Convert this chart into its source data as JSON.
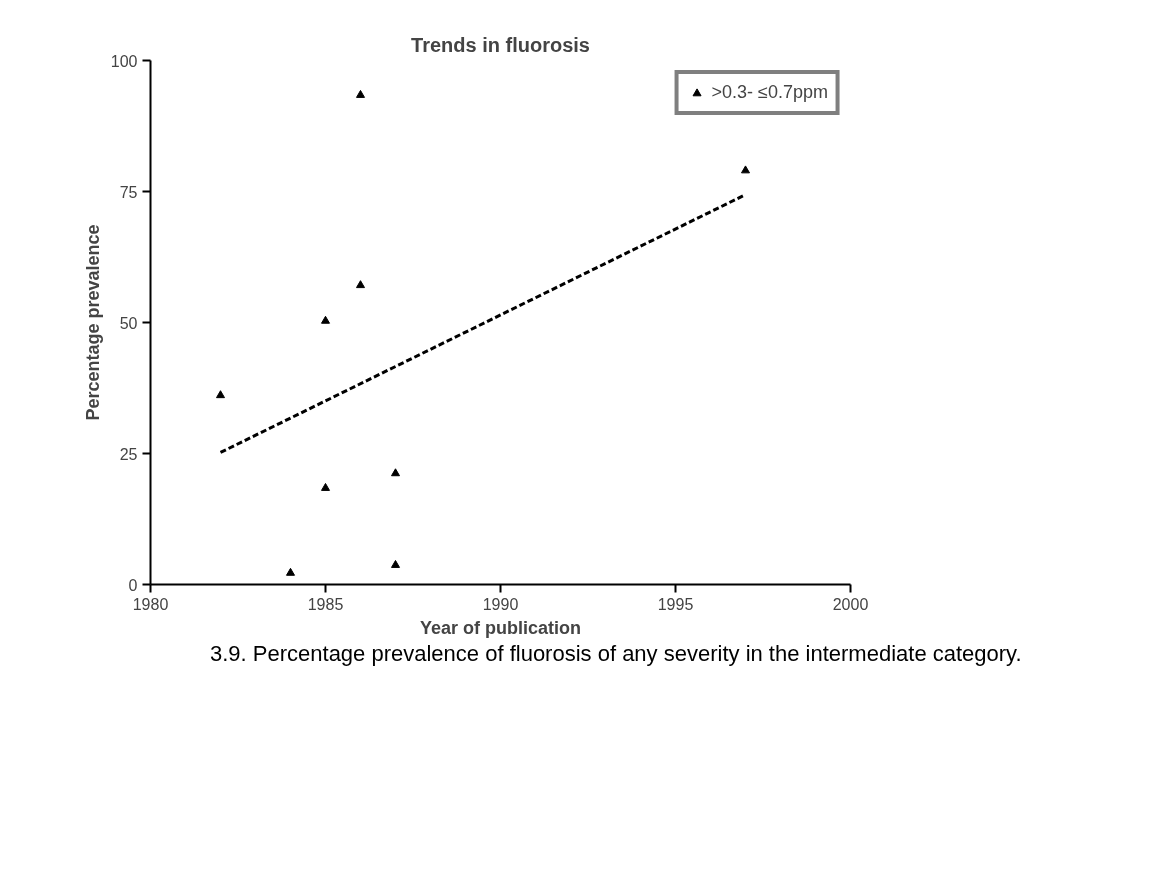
{
  "chart_data": {
    "type": "scatter",
    "title": "Trends in fluorosis",
    "xlabel": "Year of publication",
    "ylabel": "Percentage prevalence",
    "x": [
      1982,
      1984,
      1985,
      1985,
      1986,
      1986,
      1987,
      1987,
      1997
    ],
    "series": [
      {
        "name": ">0.3- ≤0.7ppm",
        "color": "#000000",
        "values": [
          36.1,
          2.2,
          50.3,
          18.4,
          93.4,
          57.1,
          21.2,
          3.7,
          79.0
        ]
      },
      {
        "type": "line",
        "color": "#000000",
        "x": [
          1982,
          1997
        ],
        "values": [
          25.2,
          74.4
        ],
        "line_style": "dashed",
        "marker": "none"
      }
    ],
    "marker": "triangle",
    "xlim": [
      1980,
      2000
    ],
    "ylim": [
      0,
      100
    ],
    "xticks": [
      1980,
      1985,
      1990,
      1995,
      2000
    ],
    "yticks": [
      0,
      25,
      50,
      75,
      100
    ],
    "grid": false,
    "legend": "top right",
    "annotations": [
      "3.9. Percentage prevalence of fluorosis of any severity in the intermediate category."
    ]
  }
}
